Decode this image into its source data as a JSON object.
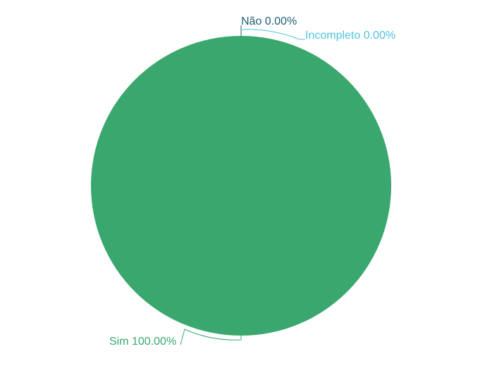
{
  "chart_data": {
    "type": "pie",
    "slices": [
      {
        "label": "Sim",
        "value": 100.0,
        "display": "Sim 100.00%",
        "color": "#3aa86e"
      },
      {
        "label": "Não",
        "value": 0.0,
        "display": "Não 0.00%",
        "color": "#1f5f73"
      },
      {
        "label": "Incompleto",
        "value": 0.0,
        "display": "Incompleto 0.00%",
        "color": "#4ec3e0"
      }
    ],
    "title": "",
    "legend": "none"
  }
}
